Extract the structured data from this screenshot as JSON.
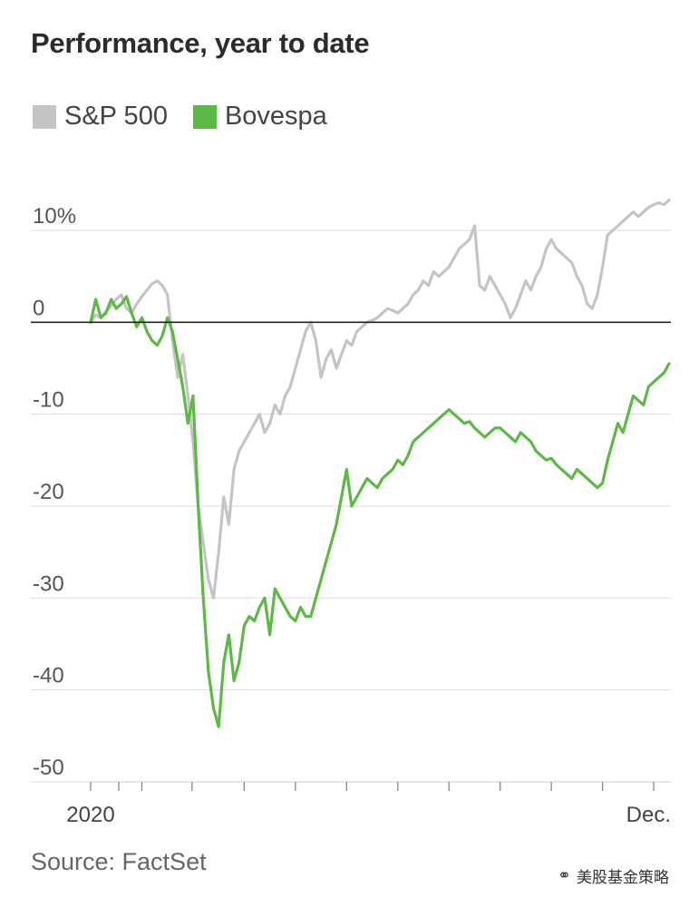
{
  "title": "Performance, year to date",
  "legend": [
    {
      "label": "S&P 500",
      "color": "#c4c4c4"
    },
    {
      "label": "Bovespa",
      "color": "#5cb946"
    }
  ],
  "source": "Source: FactSet",
  "watermark": "美股基金策略",
  "chart_data": {
    "type": "line",
    "title": "Performance, year to date",
    "xlabel": "",
    "ylabel": "",
    "ylim": [
      -50,
      10
    ],
    "yticks": [
      10,
      0,
      -10,
      -20,
      -30,
      -40,
      -50
    ],
    "ytick_labels": [
      "10%",
      "0",
      "-10",
      "-20",
      "-30",
      "-40",
      "-50"
    ],
    "xlim": [
      0,
      11.3
    ],
    "x_tick_labels": [
      {
        "x": 0,
        "label": "2020"
      },
      {
        "x": 11.3,
        "label": "Dec."
      }
    ],
    "x_minor_ticks": [
      0,
      0.55,
      1.0,
      1.98,
      3.0,
      4.0,
      5.0,
      6.0,
      7.0,
      8.0,
      9.0,
      10.0,
      11.0
    ],
    "series": [
      {
        "name": "S&P 500",
        "color": "#c4c4c4",
        "x": [
          0,
          0.1,
          0.2,
          0.3,
          0.4,
          0.5,
          0.6,
          0.7,
          0.8,
          0.9,
          1.0,
          1.1,
          1.2,
          1.3,
          1.4,
          1.5,
          1.6,
          1.7,
          1.8,
          1.9,
          2.0,
          2.1,
          2.2,
          2.3,
          2.4,
          2.5,
          2.6,
          2.7,
          2.8,
          2.9,
          3.0,
          3.1,
          3.2,
          3.3,
          3.4,
          3.5,
          3.6,
          3.7,
          3.8,
          3.9,
          4.0,
          4.1,
          4.2,
          4.3,
          4.4,
          4.5,
          4.6,
          4.7,
          4.8,
          4.9,
          5.0,
          5.1,
          5.2,
          5.3,
          5.4,
          5.5,
          5.6,
          5.7,
          5.8,
          5.9,
          6.0,
          6.1,
          6.2,
          6.3,
          6.4,
          6.5,
          6.6,
          6.7,
          6.8,
          6.9,
          7.0,
          7.1,
          7.2,
          7.3,
          7.4,
          7.5,
          7.6,
          7.7,
          7.8,
          7.9,
          8.0,
          8.1,
          8.2,
          8.3,
          8.4,
          8.5,
          8.6,
          8.7,
          8.8,
          8.9,
          9.0,
          9.1,
          9.2,
          9.3,
          9.4,
          9.5,
          9.6,
          9.7,
          9.8,
          9.9,
          10.0,
          10.1,
          10.2,
          10.3,
          10.4,
          10.5,
          10.6,
          10.7,
          10.8,
          10.9,
          11.0,
          11.1,
          11.2,
          11.3
        ],
        "values": [
          0,
          0.8,
          0.5,
          1.2,
          1.8,
          2.5,
          3.0,
          1.5,
          1.0,
          2.0,
          2.8,
          3.5,
          4.2,
          4.5,
          4.0,
          3.0,
          -2.0,
          -6.0,
          -3.5,
          -8.0,
          -13.0,
          -20.0,
          -24.0,
          -28.0,
          -30.0,
          -25.0,
          -19.0,
          -22.0,
          -16.0,
          -14.0,
          -13.0,
          -12.0,
          -11.0,
          -10.0,
          -12.0,
          -11.0,
          -9.0,
          -10.0,
          -8.0,
          -7.0,
          -5.0,
          -3.0,
          -1.0,
          0.0,
          -2.0,
          -6.0,
          -4.0,
          -3.0,
          -5.0,
          -3.5,
          -2.0,
          -2.5,
          -1.0,
          -0.5,
          0.0,
          0.2,
          0.5,
          1.0,
          1.5,
          1.3,
          1.0,
          1.5,
          2.0,
          3.0,
          3.5,
          4.5,
          4.0,
          5.5,
          5.0,
          5.5,
          6.0,
          7.0,
          8.0,
          8.5,
          9.0,
          10.5,
          4.0,
          3.5,
          5.0,
          4.0,
          3.0,
          2.0,
          0.5,
          1.5,
          3.0,
          4.5,
          3.5,
          5.0,
          6.0,
          8.0,
          9.0,
          8.0,
          7.5,
          7.0,
          6.5,
          5.0,
          4.0,
          2.0,
          1.5,
          3.0,
          6.0,
          9.5,
          10.0,
          10.5,
          11.0,
          11.5,
          12.0,
          11.5,
          12.0,
          12.5,
          12.8,
          13.0,
          12.8,
          13.3
        ]
      },
      {
        "name": "Bovespa",
        "color": "#5cb946",
        "x": [
          0,
          0.1,
          0.2,
          0.3,
          0.4,
          0.5,
          0.6,
          0.7,
          0.8,
          0.9,
          1.0,
          1.1,
          1.2,
          1.3,
          1.4,
          1.5,
          1.6,
          1.7,
          1.8,
          1.9,
          2.0,
          2.1,
          2.2,
          2.3,
          2.4,
          2.5,
          2.6,
          2.7,
          2.8,
          2.9,
          3.0,
          3.1,
          3.2,
          3.3,
          3.4,
          3.5,
          3.6,
          3.7,
          3.8,
          3.9,
          4.0,
          4.1,
          4.2,
          4.3,
          4.4,
          4.5,
          4.6,
          4.7,
          4.8,
          4.9,
          5.0,
          5.1,
          5.2,
          5.3,
          5.4,
          5.5,
          5.6,
          5.7,
          5.8,
          5.9,
          6.0,
          6.1,
          6.2,
          6.3,
          6.4,
          6.5,
          6.6,
          6.7,
          6.8,
          6.9,
          7.0,
          7.1,
          7.2,
          7.3,
          7.4,
          7.5,
          7.6,
          7.7,
          7.8,
          7.9,
          8.0,
          8.1,
          8.2,
          8.3,
          8.4,
          8.5,
          8.6,
          8.7,
          8.8,
          8.9,
          9.0,
          9.1,
          9.2,
          9.3,
          9.4,
          9.5,
          9.6,
          9.7,
          9.8,
          9.9,
          10.0,
          10.1,
          10.2,
          10.3,
          10.4,
          10.5,
          10.6,
          10.7,
          10.8,
          10.9,
          11.0,
          11.1,
          11.2,
          11.3
        ],
        "values": [
          0,
          2.5,
          0.5,
          1.0,
          2.5,
          1.5,
          2.0,
          2.8,
          1.0,
          -0.5,
          0.5,
          -1.0,
          -2.0,
          -2.5,
          -1.5,
          0.5,
          -1.0,
          -4.0,
          -7.0,
          -11.0,
          -8.0,
          -20.0,
          -30.0,
          -38.0,
          -42.0,
          -44.0,
          -37.0,
          -34.0,
          -39.0,
          -37.0,
          -33.0,
          -32.0,
          -32.5,
          -31.0,
          -30.0,
          -34.0,
          -29.0,
          -30.0,
          -31.0,
          -32.0,
          -32.5,
          -31.0,
          -32.0,
          -32.0,
          -30.0,
          -28.0,
          -26.0,
          -24.0,
          -22.0,
          -19.0,
          -16.0,
          -20.0,
          -19.0,
          -18.0,
          -17.0,
          -17.5,
          -18.0,
          -17.0,
          -16.5,
          -16.0,
          -15.0,
          -15.5,
          -14.5,
          -13.0,
          -12.5,
          -12.0,
          -11.5,
          -11.0,
          -10.5,
          -10.0,
          -9.5,
          -10.0,
          -10.5,
          -11.0,
          -10.8,
          -11.5,
          -12.0,
          -12.5,
          -12.0,
          -11.5,
          -11.5,
          -12.0,
          -12.5,
          -13.0,
          -12.0,
          -12.5,
          -13.0,
          -14.0,
          -14.5,
          -15.0,
          -14.8,
          -15.5,
          -16.0,
          -16.5,
          -17.0,
          -16.0,
          -16.5,
          -17.0,
          -17.5,
          -18.0,
          -17.5,
          -15.0,
          -13.0,
          -11.0,
          -12.0,
          -10.0,
          -8.0,
          -8.5,
          -9.0,
          -7.0,
          -6.5,
          -6.0,
          -5.5,
          -4.5
        ]
      }
    ]
  }
}
